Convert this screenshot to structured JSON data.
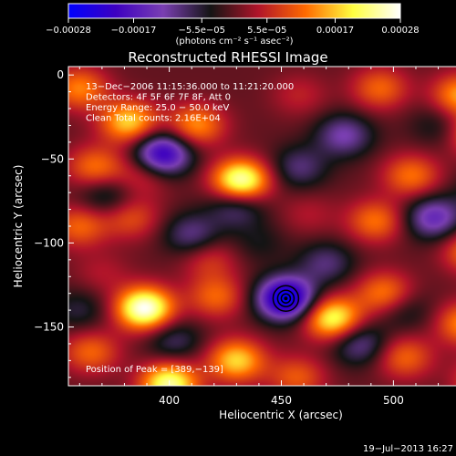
{
  "chart_data": {
    "type": "heatmap",
    "title": "Reconstructed RHESSI Image",
    "xlabel": "Heliocentric X (arcsec)",
    "ylabel": "Heliocentric Y (arcsec)",
    "xlim": [
      355,
      545
    ],
    "ylim": [
      -185,
      5
    ],
    "x_ticks": [
      400,
      450,
      500
    ],
    "x_tick_labels": [
      "400",
      "450",
      "500"
    ],
    "y_ticks": [
      0,
      -50,
      -100,
      -150
    ],
    "y_tick_labels": [
      "0",
      "−50",
      "−100",
      "−150"
    ],
    "colorbar": {
      "range": [
        -0.00028,
        0.00028
      ],
      "ticks": [
        -0.00028,
        -0.00017,
        -5.5e-05,
        5.5e-05,
        0.00017,
        0.00028
      ],
      "tick_labels": [
        "−0.00028",
        "−0.00017",
        "−5.5e−05",
        "5.5e−05",
        "0.00017",
        "0.00028"
      ],
      "unit_label": "(photons cm⁻² s⁻¹ asec⁻²)",
      "colors": [
        "#0000ff",
        "#3d00c0",
        "#7a3fb2",
        "#141414",
        "#b0142a",
        "#ff6a00",
        "#ffff40",
        "#ffffff"
      ]
    },
    "annotations": [
      "13−Dec−2006 11:15:36.000 to 11:21:20.000",
      "Detectors: 4F 5F 6F 7F 8F, Att 0",
      "Energy Range: 25.0 − 50.0 keV",
      "Clean     Total counts: 2.16E+04"
    ],
    "peak_label": "Position of Peak = [389,−139]",
    "peak": [
      389,
      -139
    ],
    "minimum": [
      452,
      -133
    ],
    "blobs": [
      {
        "x": 360,
        "y": -8,
        "v": 0.00013
      },
      {
        "x": 382,
        "y": -28,
        "v": 0.00018
      },
      {
        "x": 412,
        "y": -30,
        "v": 0.00014
      },
      {
        "x": 458,
        "y": -12,
        "v": 5e-05
      },
      {
        "x": 494,
        "y": -8,
        "v": 0.00011
      },
      {
        "x": 530,
        "y": -12,
        "v": 0.00015
      },
      {
        "x": 538,
        "y": -35,
        "v": 0.00015
      },
      {
        "x": 367,
        "y": -55,
        "v": 0.00012
      },
      {
        "x": 388,
        "y": -60,
        "v": 7e-05
      },
      {
        "x": 432,
        "y": -63,
        "v": 0.00026
      },
      {
        "x": 508,
        "y": -60,
        "v": 0.00012
      },
      {
        "x": 360,
        "y": -90,
        "v": 0.00011
      },
      {
        "x": 383,
        "y": -85,
        "v": 9e-05
      },
      {
        "x": 418,
        "y": -110,
        "v": 7e-05
      },
      {
        "x": 462,
        "y": -83,
        "v": 4e-05
      },
      {
        "x": 492,
        "y": -87,
        "v": 0.00012
      },
      {
        "x": 535,
        "y": -105,
        "v": 0.00013
      },
      {
        "x": 389,
        "y": -139,
        "v": 0.00028
      },
      {
        "x": 421,
        "y": -132,
        "v": 0.00011
      },
      {
        "x": 473,
        "y": -145,
        "v": 0.00022
      },
      {
        "x": 496,
        "y": -130,
        "v": 0.00013
      },
      {
        "x": 532,
        "y": -148,
        "v": 0.00014
      },
      {
        "x": 365,
        "y": -165,
        "v": 0.00011
      },
      {
        "x": 430,
        "y": -170,
        "v": 0.00018
      },
      {
        "x": 457,
        "y": -180,
        "v": 0.0001
      },
      {
        "x": 505,
        "y": -168,
        "v": 0.00011
      },
      {
        "x": 540,
        "y": -182,
        "v": 0.00012
      },
      {
        "x": 400,
        "y": -184,
        "v": 0.00024
      },
      {
        "x": 370,
        "y": -118,
        "v": 4e-05
      },
      {
        "x": 440,
        "y": -100,
        "v": -4e-05
      },
      {
        "x": 452,
        "y": -133,
        "v": -0.00028
      },
      {
        "x": 397,
        "y": -47,
        "v": -0.00022
      },
      {
        "x": 430,
        "y": -78,
        "v": -0.0001
      },
      {
        "x": 478,
        "y": -36,
        "v": -0.00012
      },
      {
        "x": 458,
        "y": -55,
        "v": -9e-05
      },
      {
        "x": 518,
        "y": -85,
        "v": -0.00015
      },
      {
        "x": 372,
        "y": -72,
        "v": -8e-05
      },
      {
        "x": 410,
        "y": -95,
        "v": -0.0001
      },
      {
        "x": 470,
        "y": -112,
        "v": -9e-05
      },
      {
        "x": 505,
        "y": -140,
        "v": -6e-05
      },
      {
        "x": 402,
        "y": -158,
        "v": -8e-05
      },
      {
        "x": 485,
        "y": -160,
        "v": -0.00011
      },
      {
        "x": 360,
        "y": -140,
        "v": -6e-05
      },
      {
        "x": 540,
        "y": -70,
        "v": -6e-05
      },
      {
        "x": 520,
        "y": -30,
        "v": -5e-05
      }
    ]
  },
  "footer": {
    "timestamp": "19−Jul−2013 16:27"
  }
}
